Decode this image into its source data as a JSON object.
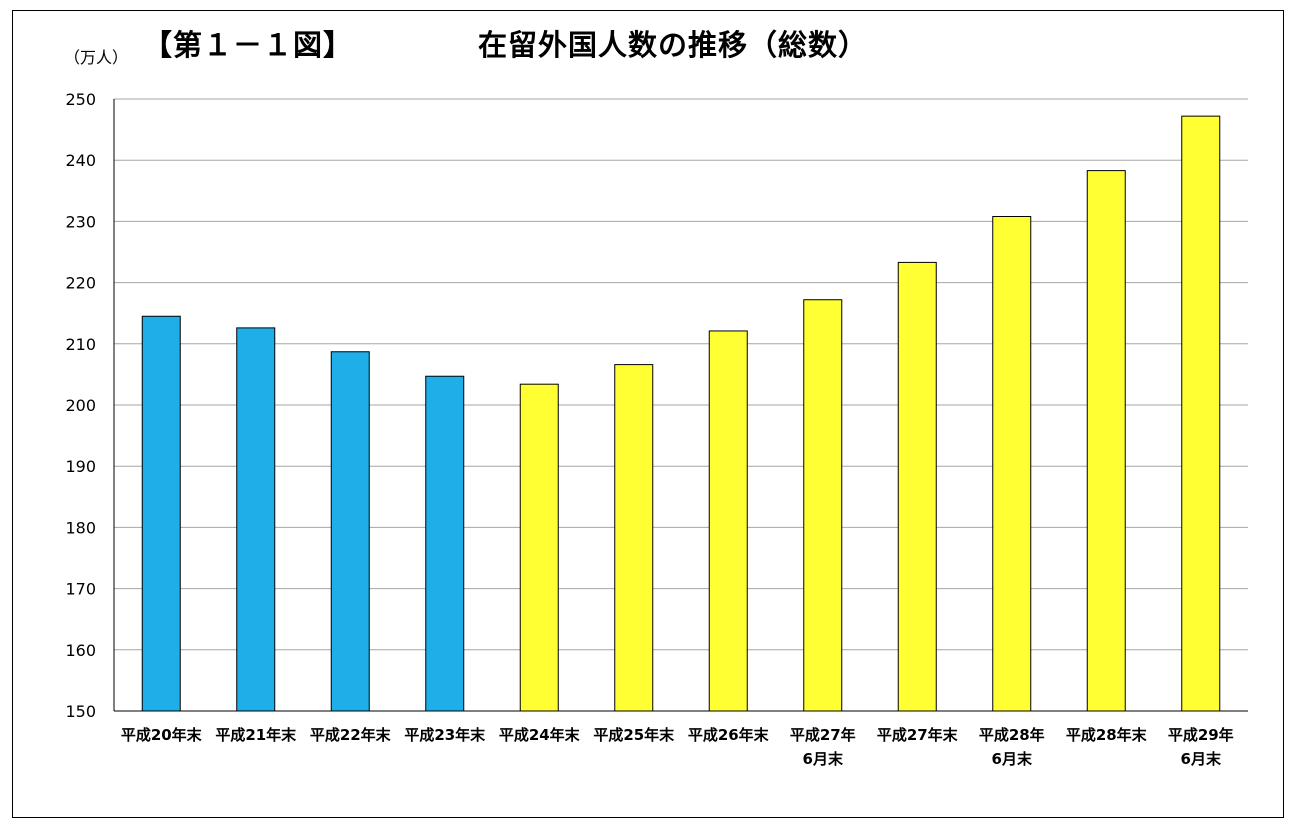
{
  "header": {
    "figure_label": "【第１－１図】",
    "title": "在留外国人数の推移（総数）",
    "unit": "（万人）"
  },
  "colors": {
    "blue": "#1EAEE8",
    "yellow": "#FFFF33",
    "grid": "#A6A6A6",
    "bar_border": "#000000"
  },
  "chart_data": {
    "type": "bar",
    "title": "在留外国人数の推移（総数）",
    "ylabel": "（万人）",
    "ylim": [
      150,
      250
    ],
    "yticks": [
      150,
      160,
      170,
      180,
      190,
      200,
      210,
      220,
      230,
      240,
      250
    ],
    "grid": true,
    "categories": [
      [
        "平成20年末"
      ],
      [
        "平成21年末"
      ],
      [
        "平成22年末"
      ],
      [
        "平成23年末"
      ],
      [
        "平成24年末"
      ],
      [
        "平成25年末"
      ],
      [
        "平成26年末"
      ],
      [
        "平成27年",
        "6月末"
      ],
      [
        "平成27年末"
      ],
      [
        "平成28年",
        "6月末"
      ],
      [
        "平成28年末"
      ],
      [
        "平成29年",
        "6月末"
      ]
    ],
    "values": [
      214.5,
      212.6,
      208.7,
      204.7,
      203.4,
      206.6,
      212.1,
      217.2,
      223.3,
      230.8,
      238.3,
      247.2
    ],
    "bar_colors": [
      "blue",
      "blue",
      "blue",
      "blue",
      "yellow",
      "yellow",
      "yellow",
      "yellow",
      "yellow",
      "yellow",
      "yellow",
      "yellow"
    ]
  }
}
